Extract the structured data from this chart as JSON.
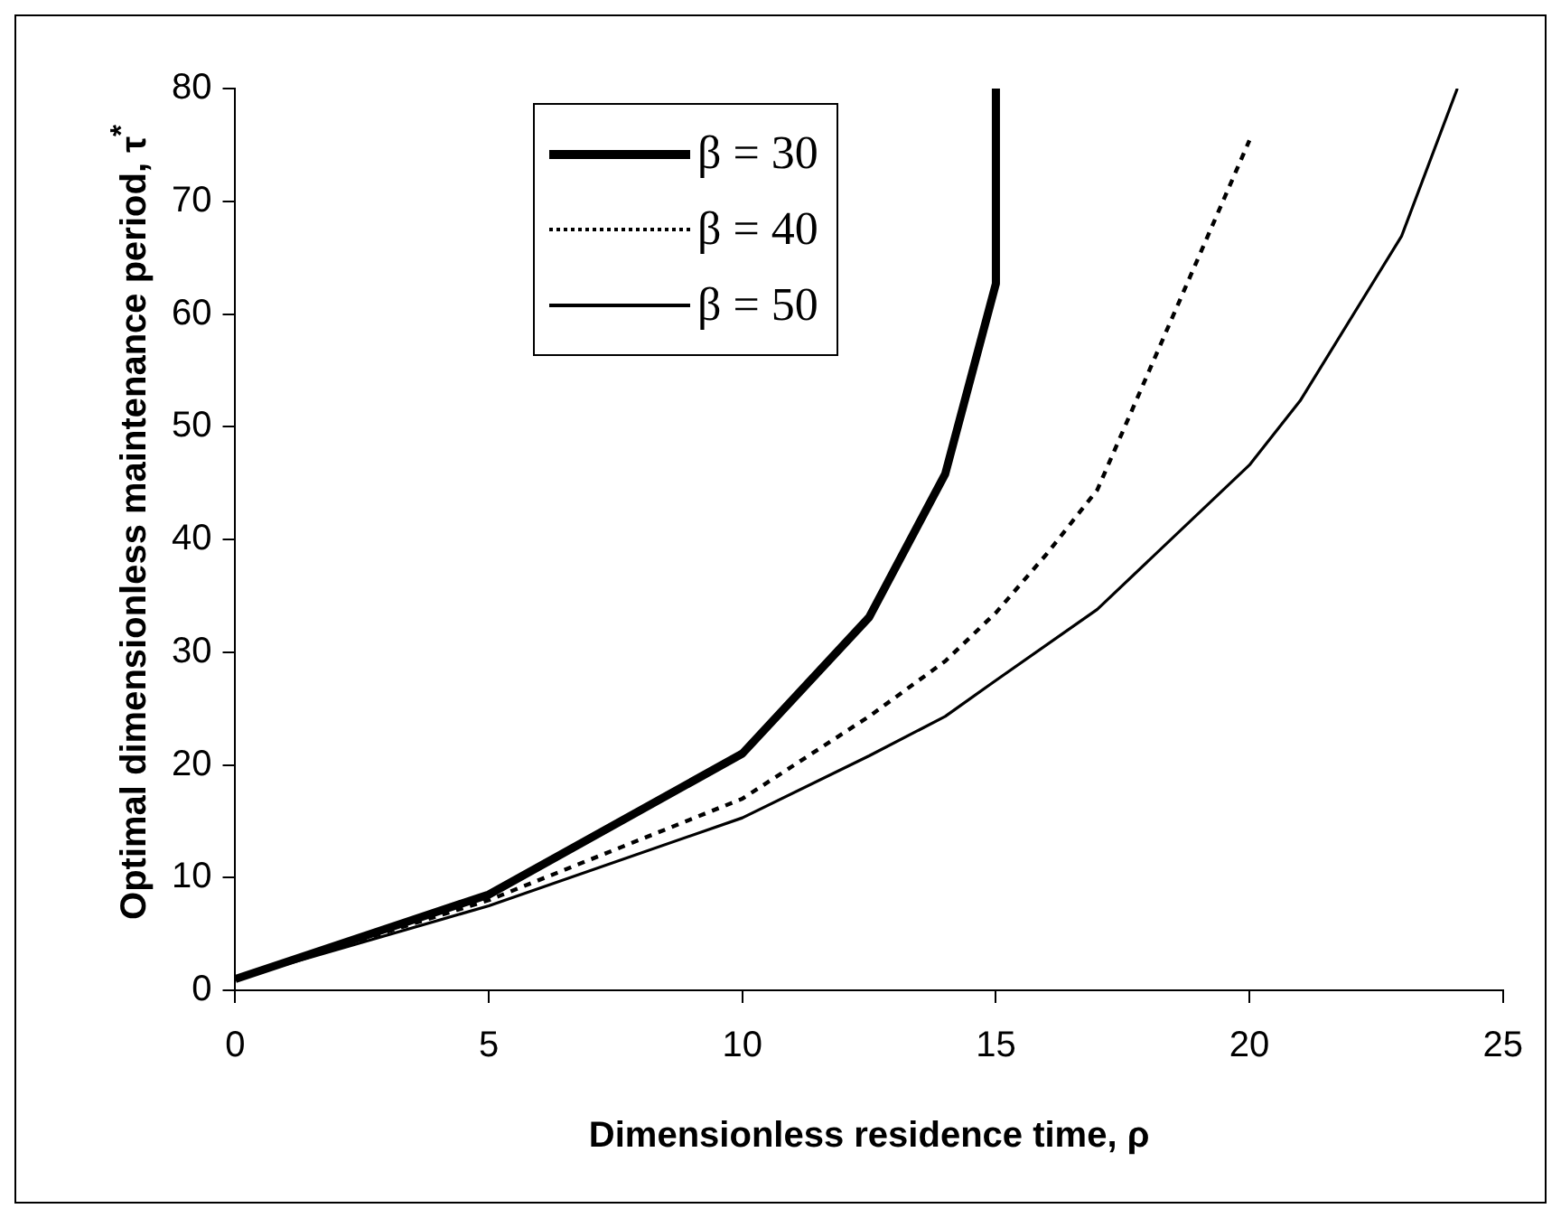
{
  "chart_data": {
    "type": "line",
    "xlabel": "Dimensionless residence time, ρ",
    "ylabel": "Optimal dimensionless maintenance period, τ$^{*}$",
    "xlim": [
      0,
      25
    ],
    "xticks": [
      0,
      5,
      10,
      15,
      20,
      25
    ],
    "ylim": [
      0,
      80
    ],
    "yticks": [
      0,
      10,
      20,
      30,
      40,
      50,
      60,
      70,
      80
    ],
    "grid": false,
    "legend": "top left",
    "marker": "none",
    "series": [
      {
        "name": "β = 30",
        "color": "#000000",
        "line_style": "solid",
        "x": [
          0,
          5,
          10,
          12.5,
          14,
          15,
          15
        ],
        "values": [
          1,
          8.5,
          21,
          33.1,
          45.8,
          62.7,
          80
        ]
      },
      {
        "name": "β = 40",
        "color": "#000000",
        "line_style": "dotted",
        "x": [
          0,
          5,
          10,
          12.5,
          14,
          15,
          16,
          17,
          20
        ],
        "values": [
          1,
          8,
          17,
          24.3,
          29.2,
          33.5,
          38.7,
          44.4,
          75.4
        ]
      },
      {
        "name": "β = 50",
        "color": "#000000",
        "line_style": "solid",
        "x": [
          0,
          5,
          10,
          12.5,
          14,
          15,
          17,
          20,
          21,
          23,
          24.1
        ],
        "values": [
          1,
          7.5,
          15.3,
          20.8,
          24.3,
          27.5,
          33.8,
          46.6,
          52.3,
          66.9,
          80
        ]
      }
    ]
  }
}
